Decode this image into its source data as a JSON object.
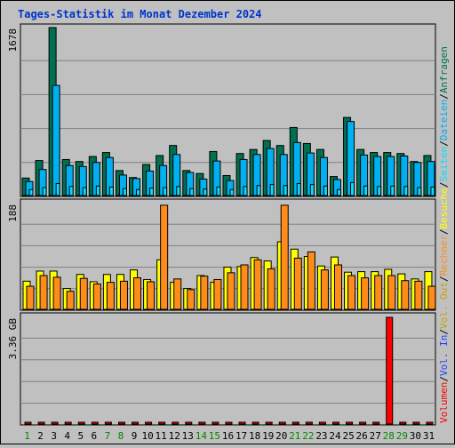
{
  "chart_data": {
    "type": "bar",
    "title": "Tages-Statistik im Monat Dezember 2024",
    "categories": [
      "1",
      "2",
      "3",
      "4",
      "5",
      "6",
      "7",
      "8",
      "9",
      "10",
      "11",
      "12",
      "13",
      "14",
      "15",
      "16",
      "17",
      "18",
      "19",
      "20",
      "21",
      "22",
      "23",
      "24",
      "25",
      "26",
      "27",
      "28",
      "29",
      "30",
      "31"
    ],
    "weekend_days": [
      "1",
      "7",
      "8",
      "14",
      "15",
      "21",
      "22",
      "28",
      "29"
    ],
    "colors": {
      "title": "#0033cc",
      "day_weekday": "#000000",
      "day_weekend": "#008800",
      "anfragen": "#007050",
      "dateien": "#00b0f0",
      "seiten": "#00e0ff",
      "besuche": "#ffff00",
      "rechner": "#ff8c1a",
      "vol_out": "#c8a000",
      "vol_in": "#2040ff",
      "volumen": "#ff0000"
    },
    "panels": [
      {
        "name": "top",
        "ymax_label": "1678",
        "ymax": 1678,
        "series": [
          {
            "name": "Anfragen",
            "values": [
              175,
              350,
              1678,
              360,
              340,
              390,
              430,
              250,
              180,
              310,
              400,
              500,
              250,
              220,
              440,
              200,
              420,
              460,
              550,
              500,
              680,
              520,
              460,
              190,
              780,
              460,
              430,
              430,
              420,
              340,
              400
            ]
          },
          {
            "name": "Dateien",
            "values": [
              140,
              260,
              1100,
              300,
              290,
              330,
              380,
              205,
              170,
              245,
              300,
              410,
              230,
              165,
              345,
              150,
              360,
              410,
              470,
              410,
              530,
              425,
              380,
              160,
              740,
              405,
              390,
              390,
              395,
              330,
              340
            ]
          },
          {
            "name": "Seiten",
            "values": [
              60,
              80,
              120,
              90,
              80,
              95,
              85,
              70,
              60,
              75,
              80,
              90,
              70,
              65,
              85,
              60,
              90,
              100,
              110,
              100,
              120,
              110,
              95,
              60,
              130,
              95,
              90,
              95,
              90,
              80,
              85
            ]
          }
        ]
      },
      {
        "name": "middle",
        "ymax_label": "188",
        "ymax": 188,
        "series": [
          {
            "name": "Besuche",
            "values": [
              50,
              68,
              68,
              37,
              62,
              49,
              62,
              62,
              70,
              53,
              88,
              48,
              37,
              60,
              48,
              75,
              76,
              92,
              86,
              120,
              107,
              94,
              77,
              93,
              66,
              67,
              67,
              71,
              63,
              54,
              67
            ]
          },
          {
            "name": "Rechner",
            "values": [
              41,
              60,
              57,
              32,
              55,
              45,
              48,
              50,
              56,
              49,
              185,
              54,
              35,
              59,
              53,
              65,
              79,
              88,
              72,
              185,
              91,
              102,
              70,
              79,
              60,
              56,
              60,
              60,
              51,
              50,
              41
            ]
          }
        ]
      },
      {
        "name": "bottom",
        "ymax_label": "3.36 GB",
        "ymax": 3.36,
        "series": [
          {
            "name": "Volumen",
            "values": [
              0.03,
              0.03,
              0.03,
              0.03,
              0.03,
              0.03,
              0.03,
              0.03,
              0.03,
              0.03,
              0.03,
              0.03,
              0.03,
              0.03,
              0.03,
              0.03,
              0.03,
              0.03,
              0.03,
              0.03,
              0.03,
              0.03,
              0.03,
              0.03,
              0.03,
              0.03,
              0.03,
              3.36,
              0.03,
              0.03,
              0.03
            ]
          }
        ]
      }
    ],
    "legend_right": [
      {
        "text": "Anfragen",
        "color_key": "anfragen"
      },
      {
        "text": "/",
        "color_key": "day_weekday"
      },
      {
        "text": "Dateien",
        "color_key": "dateien"
      },
      {
        "text": "/",
        "color_key": "day_weekday"
      },
      {
        "text": "Seiten",
        "color_key": "seiten"
      },
      {
        "text": "/",
        "color_key": "day_weekday"
      },
      {
        "text": "Besuche",
        "color_key": "besuche"
      },
      {
        "text": "/",
        "color_key": "day_weekday"
      },
      {
        "text": "Rechner",
        "color_key": "rechner"
      },
      {
        "text": "/",
        "color_key": "day_weekday"
      },
      {
        "text": "Vol. Out",
        "color_key": "vol_out"
      },
      {
        "text": "/",
        "color_key": "day_weekday"
      },
      {
        "text": "Vol. In",
        "color_key": "vol_in"
      },
      {
        "text": "/",
        "color_key": "day_weekday"
      },
      {
        "text": "Volumen",
        "color_key": "volumen"
      }
    ]
  }
}
